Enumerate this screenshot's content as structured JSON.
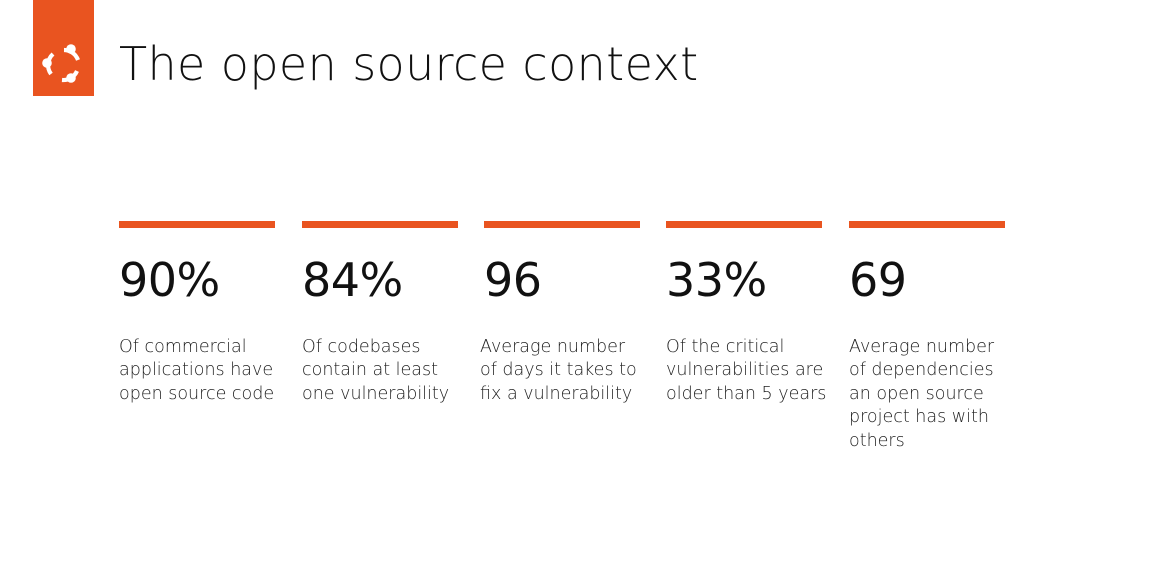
{
  "slide": {
    "title": "The open source context",
    "brand_color": "#E95420",
    "logo_icon": "ubuntu-circle-of-friends-icon"
  },
  "stats": [
    {
      "value": "90%",
      "description_lines": [
        "Of commercial",
        "applications have",
        "open source code"
      ]
    },
    {
      "value": "84%",
      "description_lines": [
        "Of codebases",
        "contain at least",
        "one vulnerability"
      ]
    },
    {
      "value": "96",
      "description_lines": [
        "Average number",
        "of days it takes to",
        "fix a vulnerability"
      ]
    },
    {
      "value": "33%",
      "description_lines": [
        "Of the critical",
        "vulnerabilities are",
        "older than 5 years"
      ]
    },
    {
      "value": "69",
      "description_lines": [
        "Average number",
        "of dependencies",
        "an open source",
        "project has with",
        "others"
      ]
    }
  ]
}
